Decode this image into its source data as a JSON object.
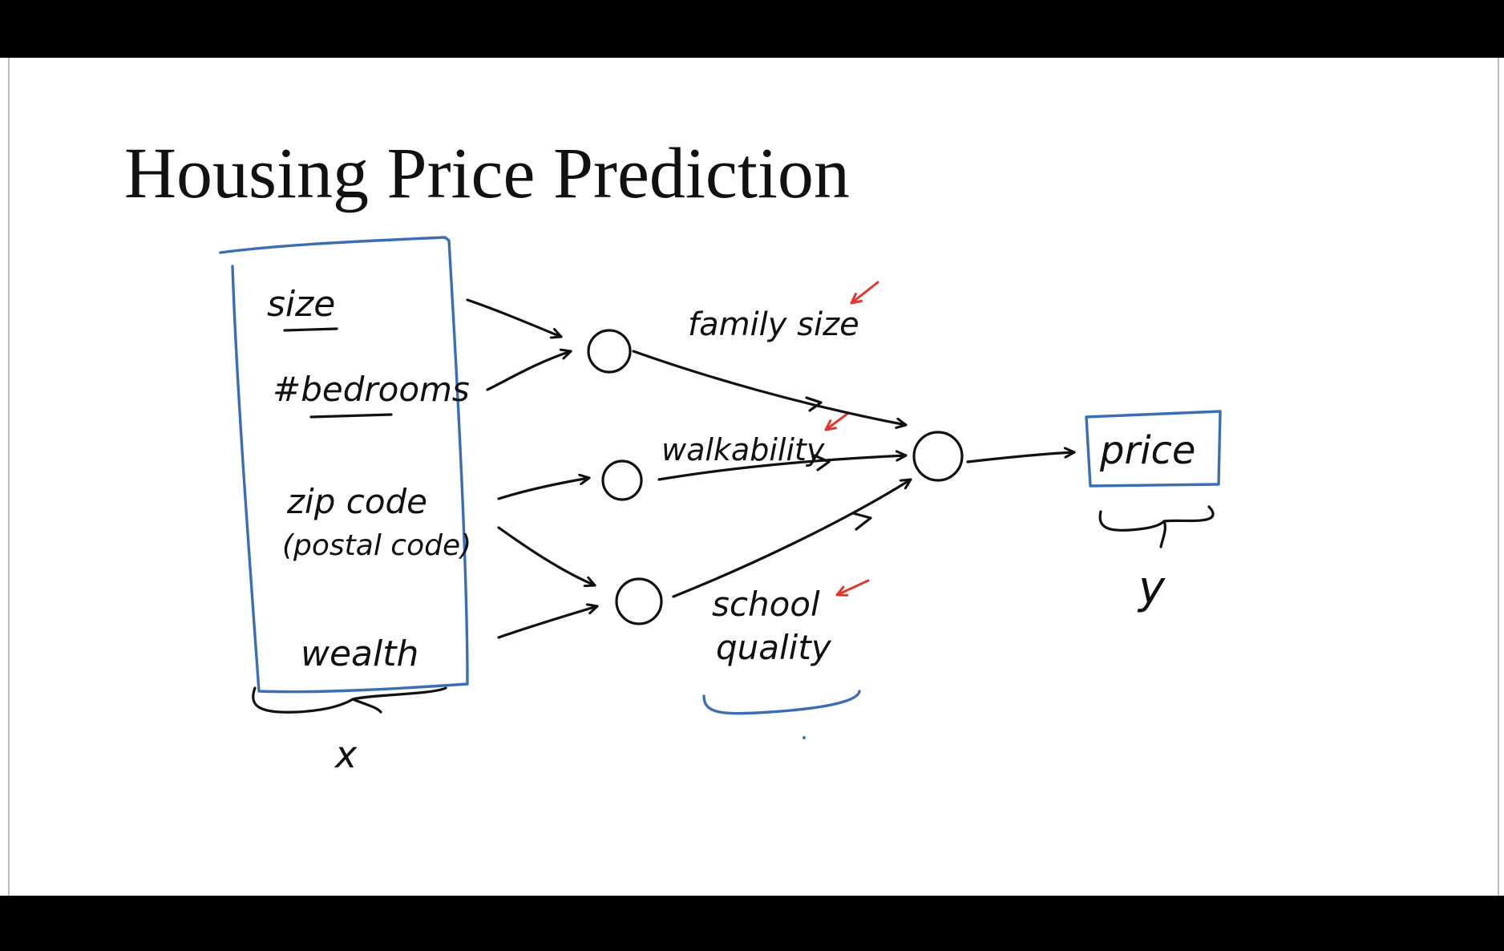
{
  "slide": {
    "title": "Housing Price Prediction"
  },
  "diagram": {
    "inputs": [
      "size",
      "#bedrooms",
      "zip code",
      "(postal code)",
      "wealth"
    ],
    "input_label": "x",
    "hidden_features": [
      "family size",
      "walkability",
      "school",
      "quality"
    ],
    "output": "price",
    "output_label": "y"
  },
  "colors": {
    "ink": "#111111",
    "box": "#3b6fb5",
    "highlight_arrows": "#e0382e",
    "letterbox": "#000000"
  }
}
